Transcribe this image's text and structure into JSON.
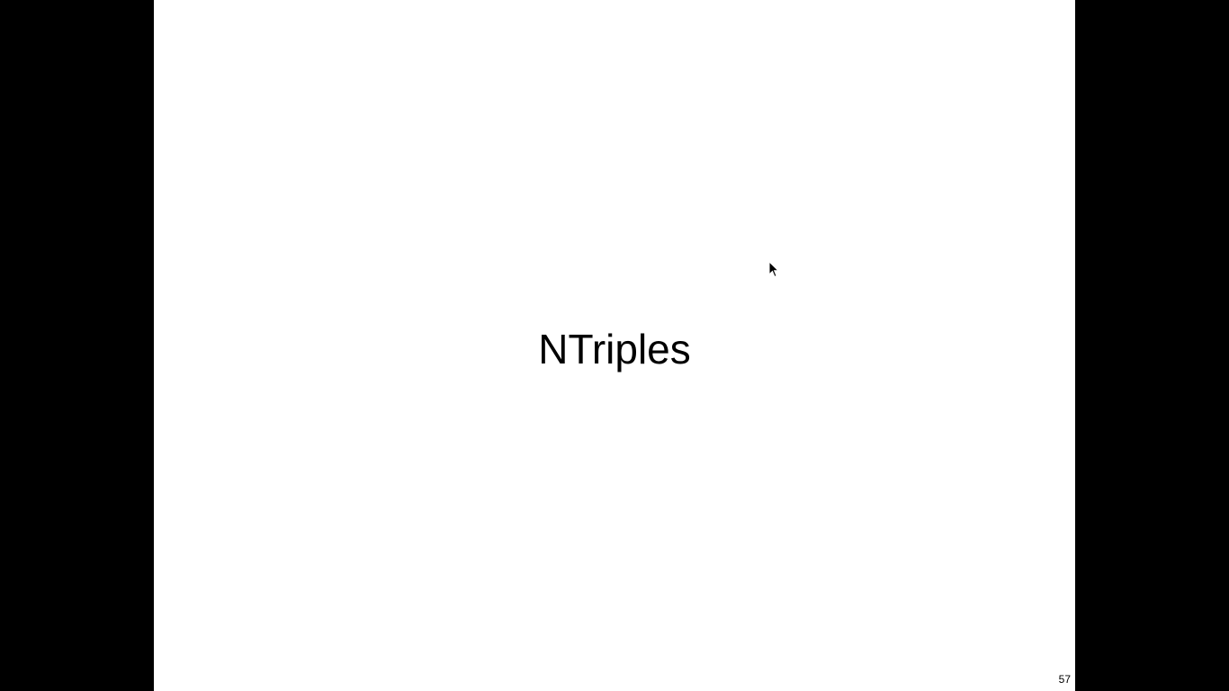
{
  "slide": {
    "title": "NTriples",
    "number": "57"
  },
  "colors": {
    "background": "#000000",
    "slide_background": "#ffffff",
    "text": "#000000"
  },
  "cursor": {
    "icon": "arrow-pointer-icon"
  }
}
